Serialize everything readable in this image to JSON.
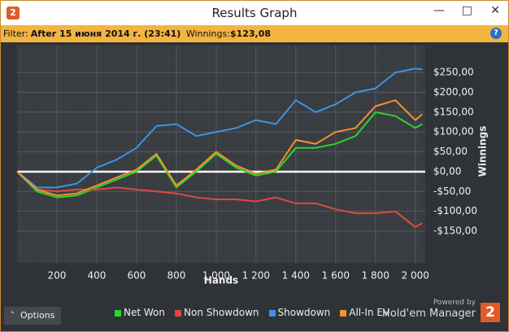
{
  "window": {
    "title": "Results Graph",
    "app_icon": "2"
  },
  "filter": {
    "label": "Filter:",
    "range": "After 15 июня 2014 г. (23:41)",
    "winnings_label": "Winnings:",
    "winnings": "$123,08",
    "help": "?"
  },
  "options": "Options",
  "branding": {
    "powered_by": "Powered by",
    "product": "Hold'em Manager",
    "logo": "2"
  },
  "chart_data": {
    "type": "line",
    "xlabel": "Hands",
    "ylabel": "Winnings",
    "x": [
      0,
      100,
      200,
      300,
      400,
      500,
      600,
      700,
      800,
      900,
      1000,
      1100,
      1200,
      1300,
      1400,
      1500,
      1600,
      1700,
      1800,
      1900,
      2000,
      2035
    ],
    "series": [
      {
        "name": "Net Won",
        "color": "#2bd62b",
        "values": [
          0,
          -50,
          -65,
          -60,
          -40,
          -20,
          0,
          40,
          -40,
          0,
          45,
          10,
          -10,
          0,
          60,
          60,
          70,
          90,
          150,
          140,
          110,
          120
        ]
      },
      {
        "name": "Non Showdown",
        "color": "#e0483e",
        "values": [
          0,
          -45,
          -50,
          -45,
          -45,
          -40,
          -45,
          -50,
          -55,
          -65,
          -70,
          -70,
          -75,
          -65,
          -80,
          -80,
          -95,
          -105,
          -105,
          -100,
          -140,
          -130
        ]
      },
      {
        "name": "Showdown",
        "color": "#3b93e6",
        "values": [
          0,
          -40,
          -40,
          -30,
          10,
          30,
          60,
          115,
          120,
          90,
          100,
          110,
          130,
          120,
          180,
          150,
          170,
          200,
          210,
          250,
          260,
          258
        ]
      },
      {
        "name": "All-In EV",
        "color": "#f39232",
        "values": [
          0,
          -45,
          -60,
          -55,
          -35,
          -15,
          5,
          45,
          -35,
          5,
          50,
          15,
          -5,
          5,
          80,
          70,
          100,
          110,
          165,
          180,
          130,
          145
        ]
      }
    ],
    "xlim": [
      0,
      2050
    ],
    "xticks": [
      200,
      400,
      600,
      800,
      {
        "value": 1000,
        "label": "1 000"
      },
      {
        "value": 1200,
        "label": "1 200"
      },
      {
        "value": 1400,
        "label": "1 400"
      },
      {
        "value": 1600,
        "label": "1 600"
      },
      {
        "value": 1800,
        "label": "1 800"
      },
      {
        "value": 2000,
        "label": "2 000"
      }
    ],
    "ylim": [
      -230,
      318
    ],
    "yticks": [
      {
        "value": -150,
        "label": "-$150,00"
      },
      {
        "value": -100,
        "label": "-$100,00"
      },
      {
        "value": -50,
        "label": "-$50,00"
      },
      {
        "value": 0,
        "label": "$0,00"
      },
      {
        "value": 50,
        "label": "$50,00"
      },
      {
        "value": 100,
        "label": "$100,00"
      },
      {
        "value": 150,
        "label": "$150,00"
      },
      {
        "value": 200,
        "label": "$200,00"
      },
      {
        "value": 250,
        "label": "$250,00"
      }
    ],
    "grid": true
  }
}
